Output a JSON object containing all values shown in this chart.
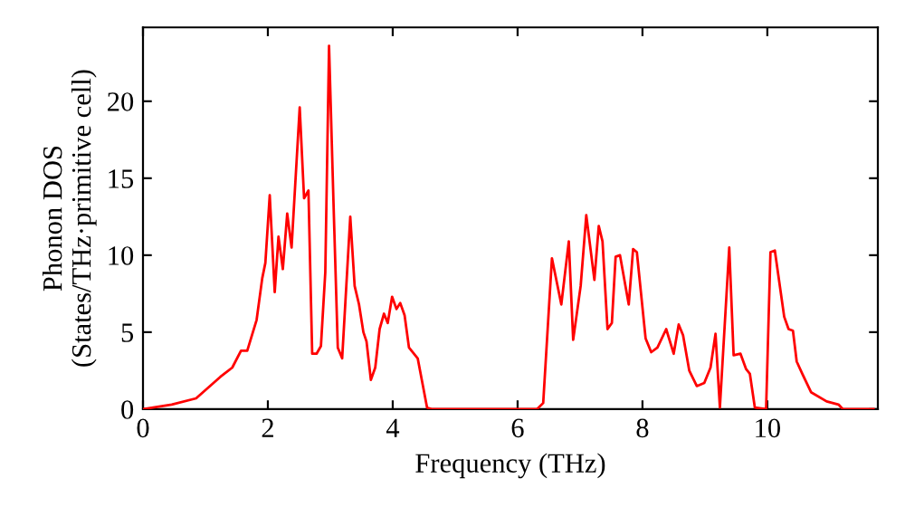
{
  "chart_data": {
    "type": "line",
    "xlabel": "Frequency (THz)",
    "ylabel": "Phonon DOS\n(States/THz·primitive cell)",
    "xlim": [
      0,
      11.77
    ],
    "ylim": [
      0,
      24.8
    ],
    "xticks": [
      0,
      2,
      4,
      6,
      8,
      10
    ],
    "yticks": [
      0,
      5,
      10,
      15,
      20
    ],
    "grid": false,
    "marker": "none",
    "line_style": "solid",
    "series": [
      {
        "color": "#ff0000",
        "x": [
          0,
          0.46,
          0.85,
          1.24,
          1.43,
          1.57,
          1.67,
          1.82,
          1.91,
          1.96,
          2.03,
          2.11,
          2.17,
          2.24,
          2.31,
          2.38,
          2.51,
          2.58,
          2.65,
          2.71,
          2.78,
          2.85,
          2.92,
          2.98,
          3.05,
          3.12,
          3.19,
          3.32,
          3.39,
          3.46,
          3.53,
          3.58,
          3.65,
          3.72,
          3.79,
          3.86,
          3.92,
          3.99,
          4.06,
          4.12,
          4.19,
          4.26,
          4.4,
          4.55,
          4.62,
          6.31,
          6.41,
          6.55,
          6.7,
          6.82,
          6.89,
          7.01,
          7.1,
          7.23,
          7.3,
          7.36,
          7.44,
          7.51,
          7.57,
          7.64,
          7.78,
          7.85,
          7.91,
          8.05,
          8.14,
          8.24,
          8.38,
          8.5,
          8.58,
          8.65,
          8.75,
          8.87,
          8.99,
          9.09,
          9.17,
          9.24,
          9.39,
          9.46,
          9.57,
          9.66,
          9.72,
          9.8,
          9.98,
          10.05,
          10.12,
          10.27,
          10.34,
          10.41,
          10.47,
          10.56,
          10.7,
          10.95,
          11.14,
          11.21,
          11.7
        ],
        "values": [
          0,
          0.3,
          0.7,
          2.1,
          2.7,
          3.8,
          3.8,
          5.8,
          8.5,
          9.5,
          13.9,
          7.6,
          11.2,
          9.1,
          12.7,
          10.5,
          19.6,
          13.7,
          14.2,
          3.6,
          3.6,
          4.1,
          8.9,
          23.6,
          13.6,
          4.0,
          3.3,
          12.5,
          8.0,
          6.8,
          5.0,
          4.4,
          1.9,
          2.7,
          5.2,
          6.2,
          5.6,
          7.3,
          6.5,
          6.9,
          6.1,
          4.0,
          3.3,
          0.1,
          0,
          0,
          0.4,
          9.8,
          6.8,
          10.9,
          4.5,
          8.0,
          12.6,
          8.4,
          11.9,
          10.9,
          5.2,
          5.6,
          9.9,
          10.0,
          6.8,
          10.4,
          10.2,
          4.6,
          3.7,
          4.0,
          5.2,
          3.6,
          5.5,
          4.8,
          2.5,
          1.5,
          1.7,
          2.7,
          4.9,
          0.1,
          10.5,
          3.5,
          3.6,
          2.6,
          2.3,
          0.1,
          0,
          10.2,
          10.3,
          6.0,
          5.2,
          5.1,
          3.1,
          2.3,
          1.1,
          0.5,
          0.3,
          0,
          0
        ]
      }
    ]
  }
}
